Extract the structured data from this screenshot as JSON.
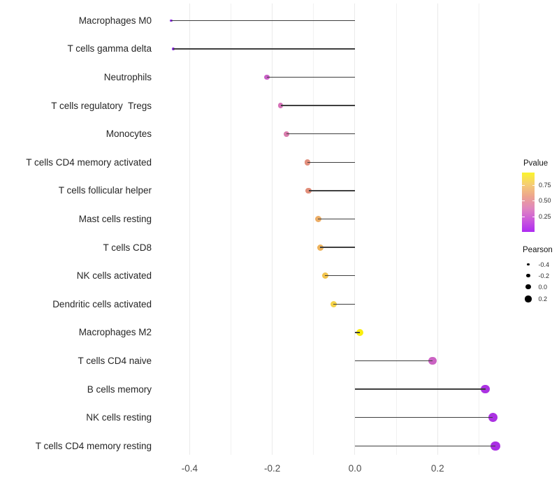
{
  "chart_data": {
    "type": "scatter",
    "subtype": "lollipop",
    "title": "",
    "xlabel": "",
    "ylabel": "",
    "grid": "vertical-only",
    "xlim": [
      -0.4835,
      0.3805
    ],
    "x_ticks": [
      -0.4,
      -0.2,
      0.0,
      0.2
    ],
    "x_tick_labels": [
      "-0.4",
      "-0.2",
      "0.0",
      "0.2"
    ],
    "x_minor_ticks": [
      -0.3,
      -0.1,
      0.1,
      0.3
    ],
    "stem_origin": 0.0,
    "stem_color": "#3f3f3f",
    "points": [
      {
        "label": "Macrophages M0",
        "pearson": -0.445,
        "color": "#8727e3",
        "r": 1.9
      },
      {
        "label": "T cells gamma delta",
        "pearson": -0.44,
        "color": "#8727e3",
        "r": 1.9
      },
      {
        "label": "Neutrophils",
        "pearson": -0.213,
        "color": "#c95fc6",
        "r": 3.7
      },
      {
        "label": "T cells regulatory  Tregs",
        "pearson": -0.18,
        "color": "#d672b8",
        "r": 3.9
      },
      {
        "label": "Monocytes",
        "pearson": -0.165,
        "color": "#d97cac",
        "r": 4.0
      },
      {
        "label": "T cells CD4 memory activated",
        "pearson": -0.115,
        "color": "#e28f7d",
        "r": 4.3
      },
      {
        "label": "T cells follicular helper",
        "pearson": -0.112,
        "color": "#e28e7a",
        "r": 4.3
      },
      {
        "label": "Mast cells resting",
        "pearson": -0.089,
        "color": "#ecad66",
        "r": 4.5
      },
      {
        "label": "T cells CD8",
        "pearson": -0.084,
        "color": "#eeb35c",
        "r": 4.5
      },
      {
        "label": "NK cells activated",
        "pearson": -0.072,
        "color": "#f2c44d",
        "r": 4.6
      },
      {
        "label": "Dendritic cells activated",
        "pearson": -0.052,
        "color": "#f5d348",
        "r": 4.7
      },
      {
        "label": "Macrophages M2",
        "pearson": 0.012,
        "color": "#faee0e",
        "r": 5.0
      },
      {
        "label": "T cells CD4 naive",
        "pearson": 0.188,
        "color": "#cb63c3",
        "r": 5.8
      },
      {
        "label": "B cells memory",
        "pearson": 0.316,
        "color": "#ab32e2",
        "r": 6.4
      },
      {
        "label": "NK cells resting",
        "pearson": 0.334,
        "color": "#ab32e2",
        "r": 6.6
      },
      {
        "label": "T cells CD4 memory resting",
        "pearson": 0.34,
        "color": "#aa2ee4",
        "r": 6.7
      }
    ],
    "legend_pvalue": {
      "title": "Pvalue",
      "ticks": [
        "0.75",
        "0.50",
        "0.25"
      ],
      "gradient_top_to_bottom": [
        "#fbf42b",
        "#f5cd74",
        "#eda58e",
        "#e087be",
        "#cb59db",
        "#ae2bf2"
      ]
    },
    "legend_pearson": {
      "title": "Pearson",
      "entries": [
        {
          "label": "-0.4",
          "r": 1.8
        },
        {
          "label": "-0.2",
          "r": 2.9
        },
        {
          "label": "0.0",
          "r": 3.8
        },
        {
          "label": "0.2",
          "r": 4.6
        }
      ]
    }
  }
}
